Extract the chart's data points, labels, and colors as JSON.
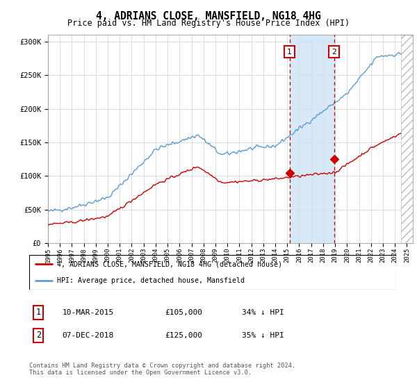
{
  "title": "4, ADRIANS CLOSE, MANSFIELD, NG18 4HG",
  "subtitle": "Price paid vs. HM Land Registry's House Price Index (HPI)",
  "sale1_date": "10-MAR-2015",
  "sale1_price": 105000,
  "sale1_label": "1",
  "sale1_year": 2015.19,
  "sale2_date": "07-DEC-2018",
  "sale2_price": 125000,
  "sale2_label": "2",
  "sale2_year": 2018.92,
  "legend1": "4, ADRIANS CLOSE, MANSFIELD, NG18 4HG (detached house)",
  "legend2": "HPI: Average price, detached house, Mansfield",
  "footer": "Contains HM Land Registry data © Crown copyright and database right 2024.\nThis data is licensed under the Open Government Licence v3.0.",
  "hpi_color": "#5b9bd5",
  "price_color": "#cc0000",
  "ylim": [
    0,
    310000
  ],
  "xlim_start": 1995.0,
  "xlim_end": 2025.5,
  "hatch_start": 2024.5
}
